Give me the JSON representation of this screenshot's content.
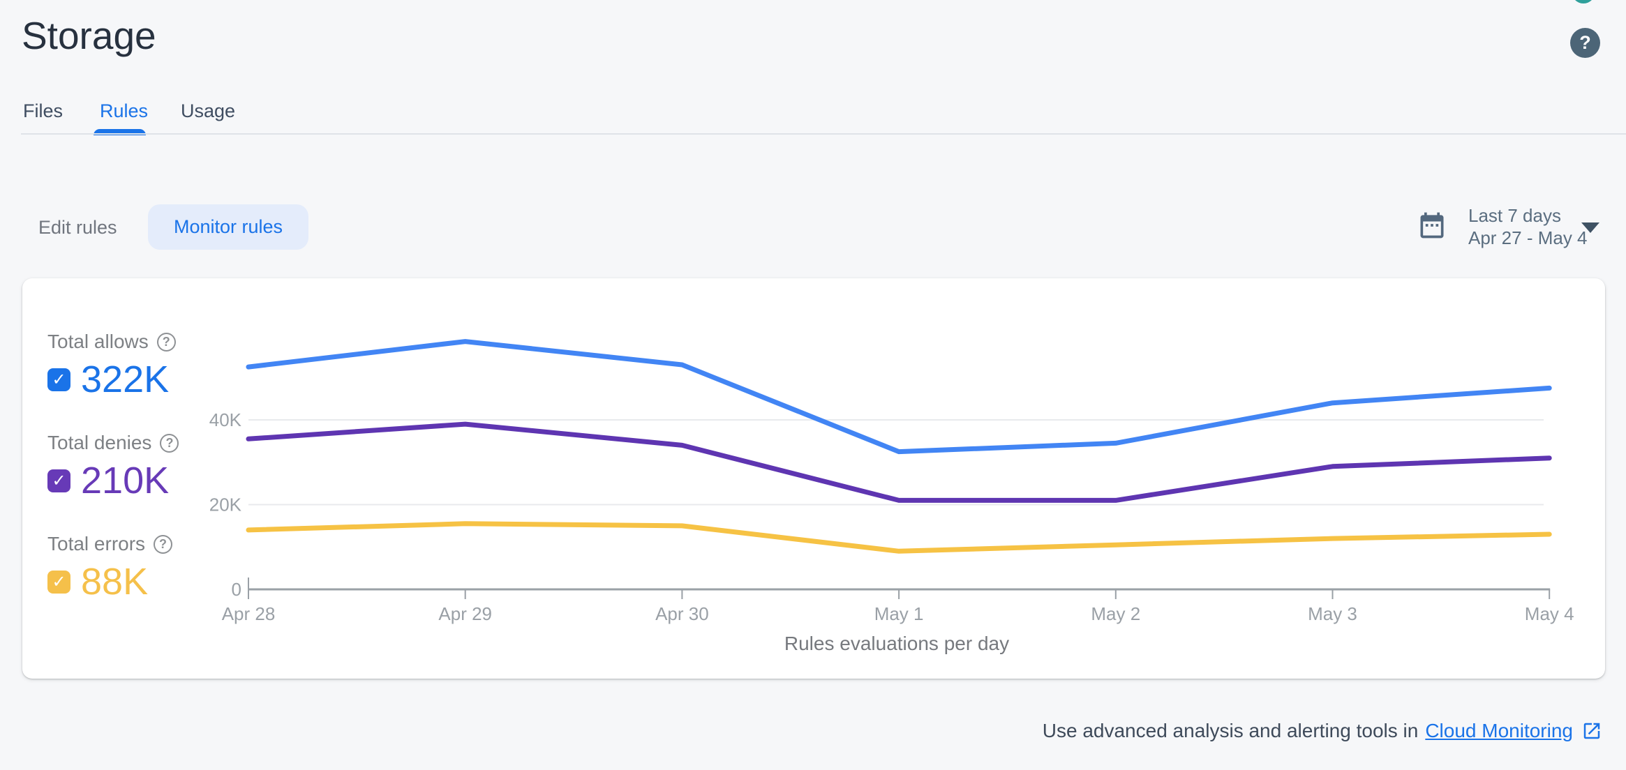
{
  "header": {
    "title": "Storage",
    "help_glyph": "?"
  },
  "tabs": [
    {
      "label": "Files",
      "active": false
    },
    {
      "label": "Rules",
      "active": true
    },
    {
      "label": "Usage",
      "active": false
    }
  ],
  "toolbar": {
    "edit_label": "Edit rules",
    "monitor_label": "Monitor rules"
  },
  "date_range": {
    "line1": "Last 7 days",
    "line2": "Apr 27 - May 4"
  },
  "legend": [
    {
      "label": "Total allows",
      "value": "322K",
      "color": "#1A73E8",
      "help_glyph": "?",
      "checked": true
    },
    {
      "label": "Total denies",
      "value": "210K",
      "color": "#673AB7",
      "help_glyph": "?",
      "checked": true
    },
    {
      "label": "Total errors",
      "value": "88K",
      "color": "#F5C04A",
      "help_glyph": "?",
      "checked": true
    }
  ],
  "chart_data": {
    "type": "line",
    "title": "Rules evaluations per day",
    "x": [
      "Apr 28",
      "Apr 29",
      "Apr 30",
      "May 1",
      "May 2",
      "May 3",
      "May 4"
    ],
    "series": [
      {
        "name": "Total allows",
        "color": "#4285F4",
        "values": [
          52500,
          58500,
          53000,
          32500,
          34500,
          44000,
          47500
        ]
      },
      {
        "name": "Total denies",
        "color": "#5E35B1",
        "values": [
          35500,
          39000,
          34000,
          21000,
          21000,
          29000,
          31000
        ]
      },
      {
        "name": "Total errors",
        "color": "#F6C244",
        "values": [
          14000,
          15500,
          15000,
          9000,
          10500,
          12000,
          13000
        ]
      }
    ],
    "yticks": [
      {
        "v": 0,
        "label": "0"
      },
      {
        "v": 20000,
        "label": "20K"
      },
      {
        "v": 40000,
        "label": "40K"
      }
    ],
    "ylim": [
      0,
      65000
    ],
    "grid": true,
    "legend_position": "left"
  },
  "footer": {
    "text": "Use advanced analysis and alerting tools in",
    "link_label": "Cloud Monitoring"
  }
}
